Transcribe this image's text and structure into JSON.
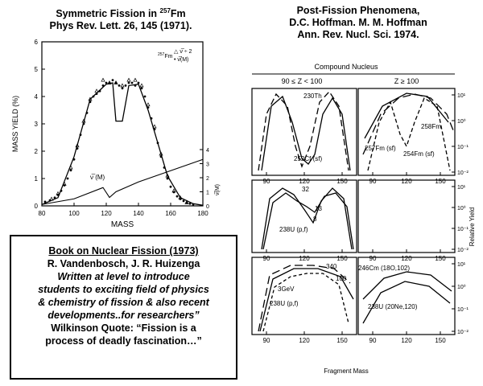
{
  "left_title": {
    "line1_prefix": "Symmetric Fission in ",
    "line1_sup": "257",
    "line1_suffix": "Fm",
    "line2": "Phys Rev. Lett. 26, 145 (1971)."
  },
  "right_title": {
    "line1": "Post-Fission Phenomena,",
    "line2": "D.C. Hoffman. M. M.  Hoffman",
    "line3": "Ann. Rev. Nucl. Sci. 1974."
  },
  "book": {
    "title": "Book on Nuclear Fission (1973)",
    "authors": "R. Vandenbosch, J. R. Huizenga",
    "desc1": "Written at level to introduce",
    "desc2": "students to exciting field of physics",
    "desc3": "& chemistry of fission & also recent",
    "desc4": "developments..for  researchers”",
    "quote1": "Wilkinson Quote:  “Fission is a",
    "quote2": "process of deadly fascination…”"
  },
  "chart_data": [
    {
      "type": "scatter",
      "xlabel": "MASS",
      "ylabel": "MASS YIELD (%)",
      "xlim": [
        80,
        180
      ],
      "ylim": [
        0,
        6
      ],
      "xticks": [
        "80",
        "100",
        "120",
        "140",
        "160",
        "180"
      ],
      "yticks": [
        "0",
        "1",
        "2",
        "3",
        "4",
        "5",
        "6"
      ],
      "legend": {
        "isotope_sup": "257",
        "isotope": "Fm",
        "entry1": "△ ν̅ ÷ 2",
        "entry2": "• ν̅(M)"
      },
      "secondary_axis": {
        "label": "ν̅(M)",
        "ticks": [
          "0",
          "1",
          "2",
          "3",
          "4"
        ],
        "lim": [
          0,
          4
        ]
      },
      "annotation": "ν̅ (M)",
      "series": [
        {
          "style": "points",
          "x": [
            82,
            85,
            88,
            90,
            92,
            94,
            96,
            98,
            100,
            102,
            104,
            106,
            108,
            110,
            112,
            114,
            116,
            118,
            120,
            122,
            124,
            126,
            128,
            130,
            132,
            134,
            136,
            138,
            140,
            142,
            144,
            146,
            148,
            150,
            152,
            154,
            156,
            158,
            160,
            162,
            164,
            166,
            168,
            170,
            172,
            174
          ],
          "y": [
            0.15,
            0.2,
            0.3,
            0.4,
            0.55,
            0.75,
            1.0,
            1.3,
            1.7,
            2.1,
            2.6,
            3.0,
            3.4,
            3.8,
            4.0,
            4.1,
            4.2,
            4.4,
            4.5,
            4.5,
            4.6,
            4.5,
            4.4,
            4.3,
            4.4,
            4.5,
            4.5,
            4.4,
            4.5,
            4.3,
            4.0,
            3.6,
            3.2,
            2.8,
            2.3,
            1.8,
            1.4,
            1.0,
            0.7,
            0.5,
            0.35,
            0.25,
            0.18,
            0.12,
            0.08,
            0.05
          ]
        },
        {
          "style": "triangles",
          "x": [
            86,
            90,
            94,
            98,
            102,
            106,
            110,
            114,
            118,
            122,
            126,
            130,
            134,
            138,
            142,
            146,
            150,
            154,
            158,
            162,
            166,
            170
          ],
          "y": [
            0.25,
            0.45,
            0.8,
            1.4,
            2.2,
            3.1,
            3.9,
            4.2,
            4.6,
            4.5,
            4.5,
            4.4,
            4.6,
            4.6,
            4.4,
            3.7,
            2.9,
            1.9,
            1.1,
            0.55,
            0.3,
            0.12
          ]
        },
        {
          "style": "curve",
          "x": [
            80,
            90,
            100,
            110,
            120,
            124,
            126,
            130,
            134,
            140,
            146,
            150,
            158,
            166,
            174,
            180
          ],
          "y": [
            0.05,
            0.3,
            1.8,
            3.9,
            4.45,
            4.5,
            3.1,
            3.1,
            4.4,
            4.45,
            3.5,
            2.7,
            1.1,
            0.3,
            0.08,
            0.02
          ]
        },
        {
          "style": "nu-line",
          "x": [
            80,
            100,
            118,
            122,
            126,
            140,
            160,
            180
          ],
          "y": [
            0.1,
            0.5,
            1.3,
            0.6,
            1.0,
            1.7,
            2.5,
            3.3
          ]
        }
      ]
    },
    {
      "type": "line",
      "title_top": "Compound    Nucleus",
      "col_left": "90 ≤  Z < 100",
      "col_right": "Z ≥ 100",
      "xlabel": "Fragment    Mass",
      "ylabel": "Relative  Yield",
      "xticks": [
        "90",
        "120",
        "150"
      ],
      "xticks_right": [
        "90",
        "120",
        "150"
      ],
      "yticks": [
        "10¹",
        "10⁰",
        "10⁻¹",
        "10⁻²"
      ],
      "panels": [
        {
          "id": "p1",
          "labels": [
            "230Th",
            "252Cf (sf)"
          ]
        },
        {
          "id": "p2",
          "labels": [
            "257Fm (sf)",
            "258Fm",
            "254Fm (sf)"
          ]
        },
        {
          "id": "p3",
          "labels": [
            "32",
            "13",
            "8",
            "238U (p,f)"
          ]
        },
        {
          "id": "p4",
          "labels": []
        },
        {
          "id": "p5",
          "labels": [
            "340",
            "100",
            "3GeV",
            "238U (p,f)"
          ]
        },
        {
          "id": "p6",
          "labels": [
            "246Cm (18O,102)",
            "238U (20Ne,120)"
          ]
        }
      ]
    }
  ]
}
